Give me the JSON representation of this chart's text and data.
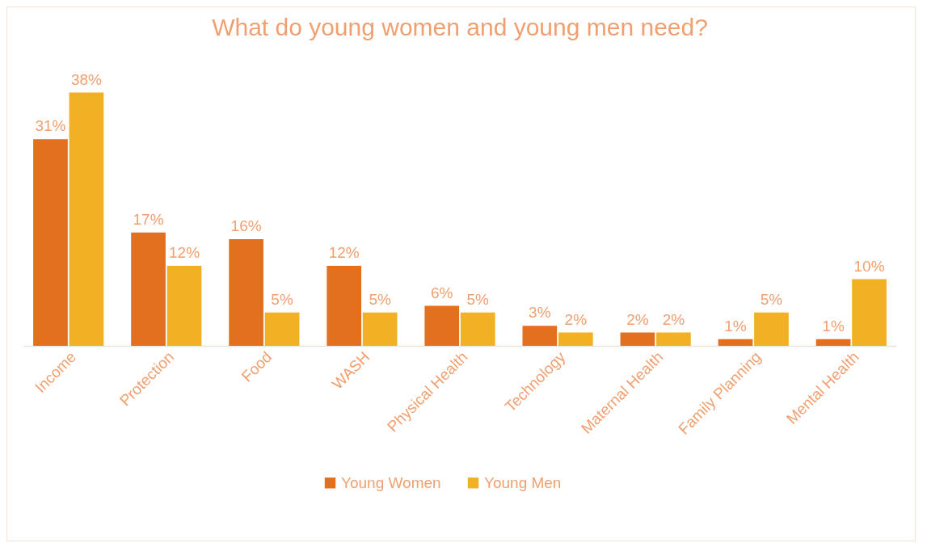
{
  "chart_data": {
    "type": "bar",
    "title": "What do young women and young men need?",
    "categories": [
      "Income",
      "Protection",
      "Food",
      "WASH",
      "Physical Health",
      "Technology",
      "Maternal Health",
      "Family Planning",
      "Mental Health"
    ],
    "series": [
      {
        "name": "Young Women",
        "color": "#e2701f",
        "values": [
          31,
          17,
          16,
          12,
          6,
          3,
          2,
          1,
          1
        ],
        "value_labels": [
          "31%",
          "17%",
          "16%",
          "12%",
          "6%",
          "3%",
          "2%",
          "1%",
          "1%"
        ]
      },
      {
        "name": "Young Men",
        "color": "#f2b125",
        "values": [
          38,
          12,
          5,
          5,
          5,
          2,
          2,
          5,
          10
        ],
        "value_labels": [
          "38%",
          "12%",
          "5%",
          "5%",
          "5%",
          "2%",
          "2%",
          "5%",
          "10%"
        ]
      }
    ],
    "legend": "bottom"
  }
}
